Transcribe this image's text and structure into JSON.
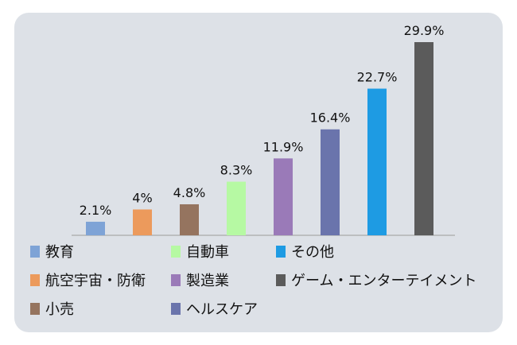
{
  "chart_data": {
    "type": "bar",
    "categories": [
      "教育",
      "航空宇宙・防衛",
      "小売",
      "自動車",
      "製造業",
      "ヘルスケア",
      "その他",
      "ゲーム・エンターテイメント"
    ],
    "values": [
      2.1,
      4.0,
      4.8,
      8.3,
      11.9,
      16.4,
      22.7,
      29.9
    ],
    "labels": [
      "2.1%",
      "4%",
      "4.8%",
      "8.3%",
      "11.9%",
      "16.4%",
      "22.7%",
      "29.9%"
    ],
    "colors": [
      "#7ea3d6",
      "#ec9a5c",
      "#95745f",
      "#b6f9a3",
      "#9a7ab8",
      "#6a74ac",
      "#1e9be3",
      "#5b5b5b"
    ],
    "ylim": [
      0,
      29.9
    ],
    "grid": false,
    "legend_position": "bottom",
    "legend_order": [
      0,
      3,
      6,
      1,
      4,
      7,
      2,
      5
    ]
  }
}
